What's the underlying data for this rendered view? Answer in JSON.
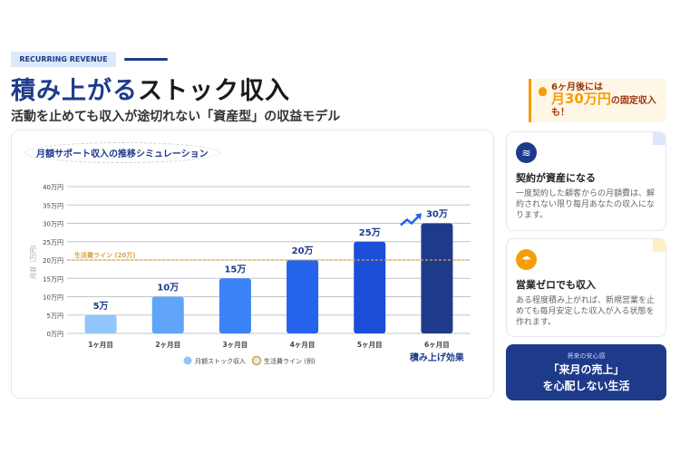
{
  "header": {
    "badge": "RECURRING REVENUE",
    "title_highlight": "積み上がる",
    "title_rest": "ストック収入",
    "subtitle": "活動を止めても収入が途切れない「資産型」の収益モデル"
  },
  "callout": {
    "line1": "6ヶ月後には",
    "amount": "月30万円",
    "line2": "の固定収入",
    "line3": "も！"
  },
  "cards": [
    {
      "icon": "layers-icon",
      "title": "契約が資産になる",
      "text": "一度契約した顧客からの月額費は、解約されない限り毎月あなたの収入になります。",
      "icon_color": "#1e3a8a",
      "corner_color": "#dbe7fb"
    },
    {
      "icon": "beach-umbrella-icon",
      "title": "営業ゼロでも収入",
      "text": "ある程度積み上がれば、新規営業を止めても毎月安定した収入が入る状態を作れます。",
      "icon_color": "#f59e0b",
      "corner_color": "#fdf0c4"
    }
  ],
  "cta": {
    "small": "将来の安心感",
    "line1": "「来月の売上」",
    "line2": "を心配しない生活"
  },
  "chart_data": {
    "type": "bar",
    "title": "月額サポート収入の推移シミュレーション",
    "categories": [
      "1ヶ月目",
      "2ヶ月目",
      "3ヶ月目",
      "4ヶ月目",
      "5ヶ月目",
      "6ヶ月目"
    ],
    "values": [
      5,
      10,
      15,
      20,
      25,
      30
    ],
    "data_labels": [
      "5万",
      "10万",
      "15万",
      "20万",
      "25万",
      "30万"
    ],
    "bar_colors": [
      "#93c5fd",
      "#60a5fa",
      "#3b82f6",
      "#2563eb",
      "#1d4ed8",
      "#1e3a8a"
    ],
    "ylabel": "月収（万円）",
    "ylim": [
      0,
      40
    ],
    "yticks": [
      0,
      5,
      10,
      15,
      20,
      25,
      30,
      35,
      40
    ],
    "ytick_labels": [
      "0万円",
      "5万円",
      "10万円",
      "15万円",
      "20万円",
      "25万円",
      "30万円",
      "35万円",
      "40万円"
    ],
    "reference_line": {
      "value": 20,
      "label": "生活費ライン (20万)",
      "color": "#d9a441"
    },
    "legend": [
      "月額ストック収入",
      "生活費ライン (例)"
    ],
    "legend_position": "bottom",
    "annotation": "積み上げ効果"
  }
}
